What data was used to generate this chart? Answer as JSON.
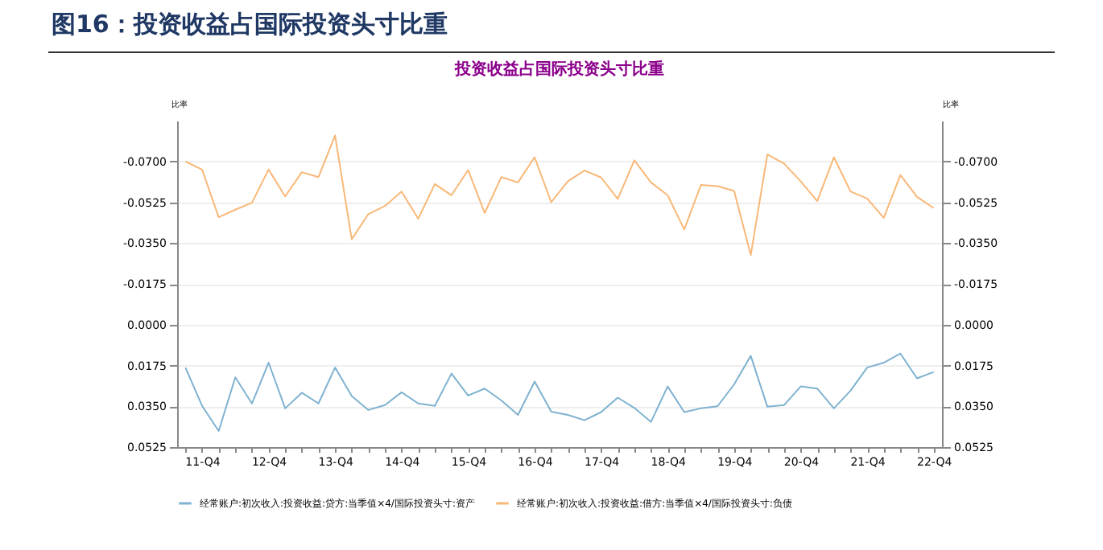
{
  "chart_data": {
    "type": "line",
    "title": "图16：投资收益占国际投资头寸比重",
    "subtitle": "投资收益占国际投资头寸比重",
    "ylabel": "比率",
    "y2label": "比率",
    "categories": [
      null,
      "11-Q4",
      null,
      null,
      null,
      "12-Q4",
      null,
      null,
      null,
      "13-Q4",
      null,
      null,
      null,
      "14-Q4",
      null,
      null,
      null,
      "15-Q4",
      null,
      null,
      null,
      "16-Q4",
      null,
      null,
      null,
      "17-Q4",
      null,
      null,
      null,
      "18-Q4",
      null,
      null,
      null,
      "19-Q4",
      null,
      null,
      null,
      "20-Q4",
      null,
      null,
      null,
      "21-Q4",
      null,
      null,
      null,
      "22-Q4"
    ],
    "series": [
      {
        "name": "经常账户:初次收入:投资收益:贷方:当季值×4/国际投资头寸:资产",
        "color": "#7fb2d0",
        "values": [
          0.0184,
          0.0348,
          0.0456,
          0.0226,
          0.0338,
          0.0163,
          0.0359,
          0.0292,
          0.0338,
          0.0184,
          0.0306,
          0.0366,
          0.0345,
          0.029,
          0.0338,
          0.0348,
          0.021,
          0.0304,
          0.0274,
          0.0325,
          0.0387,
          0.0244,
          0.0373,
          0.0387,
          0.041,
          0.0375,
          0.0313,
          0.0357,
          0.0417,
          0.0265,
          0.0375,
          0.0359,
          0.035,
          0.0256,
          0.0134,
          0.0352,
          0.0345,
          0.0265,
          0.0274,
          0.0359,
          0.0283,
          0.0184,
          0.0163,
          0.0124,
          0.023,
          0.0203
        ]
      },
      {
        "name": "经常账户:初次收入:投资收益:借方:当季值×4/国际投资头寸:负债",
        "color": "#f8b878",
        "values": [
          -0.07,
          -0.0665,
          -0.0461,
          -0.0493,
          -0.0523,
          -0.0665,
          -0.055,
          -0.0654,
          -0.0633,
          -0.0811,
          -0.0366,
          -0.0474,
          -0.0509,
          -0.0571,
          -0.0454,
          -0.0603,
          -0.0555,
          -0.0663,
          -0.0479,
          -0.0633,
          -0.061,
          -0.0718,
          -0.0525,
          -0.0615,
          -0.0661,
          -0.0631,
          -0.0539,
          -0.0705,
          -0.061,
          -0.0555,
          -0.0408,
          -0.0599,
          -0.0594,
          -0.0573,
          -0.0299,
          -0.073,
          -0.0691,
          -0.0615,
          -0.053,
          -0.0718,
          -0.0571,
          -0.0541,
          -0.0458,
          -0.0642,
          -0.0548,
          -0.05
        ]
      }
    ],
    "ylim": [
      0.0525,
      -0.0875
    ],
    "yticks": [
      {
        "value": -0.07,
        "label": "-0.0700"
      },
      {
        "value": -0.0525,
        "label": "-0.0525"
      },
      {
        "value": -0.035,
        "label": "-0.0350"
      },
      {
        "value": -0.0175,
        "label": "-0.0175"
      },
      {
        "value": 0,
        "label": "0.0000"
      },
      {
        "value": 0.0175,
        "label": "0.0175"
      },
      {
        "value": 0.035,
        "label": "0.0350"
      },
      {
        "value": 0.0525,
        "label": "0.0525"
      }
    ],
    "y2lim": [
      0.0525,
      -0.0875
    ],
    "y2ticks": [
      {
        "value": -0.07,
        "label": "-0.0700"
      },
      {
        "value": -0.0525,
        "label": "-0.0525"
      },
      {
        "value": -0.035,
        "label": "-0.0350"
      },
      {
        "value": -0.0175,
        "label": "-0.0175"
      },
      {
        "value": 0,
        "label": "0.0000"
      },
      {
        "value": 0.0175,
        "label": "0.0175"
      },
      {
        "value": 0.035,
        "label": "0.0350"
      },
      {
        "value": 0.0525,
        "label": "0.0525"
      }
    ],
    "grid": "y",
    "legend": "bottom",
    "marker": "none",
    "line_style": "solid"
  }
}
